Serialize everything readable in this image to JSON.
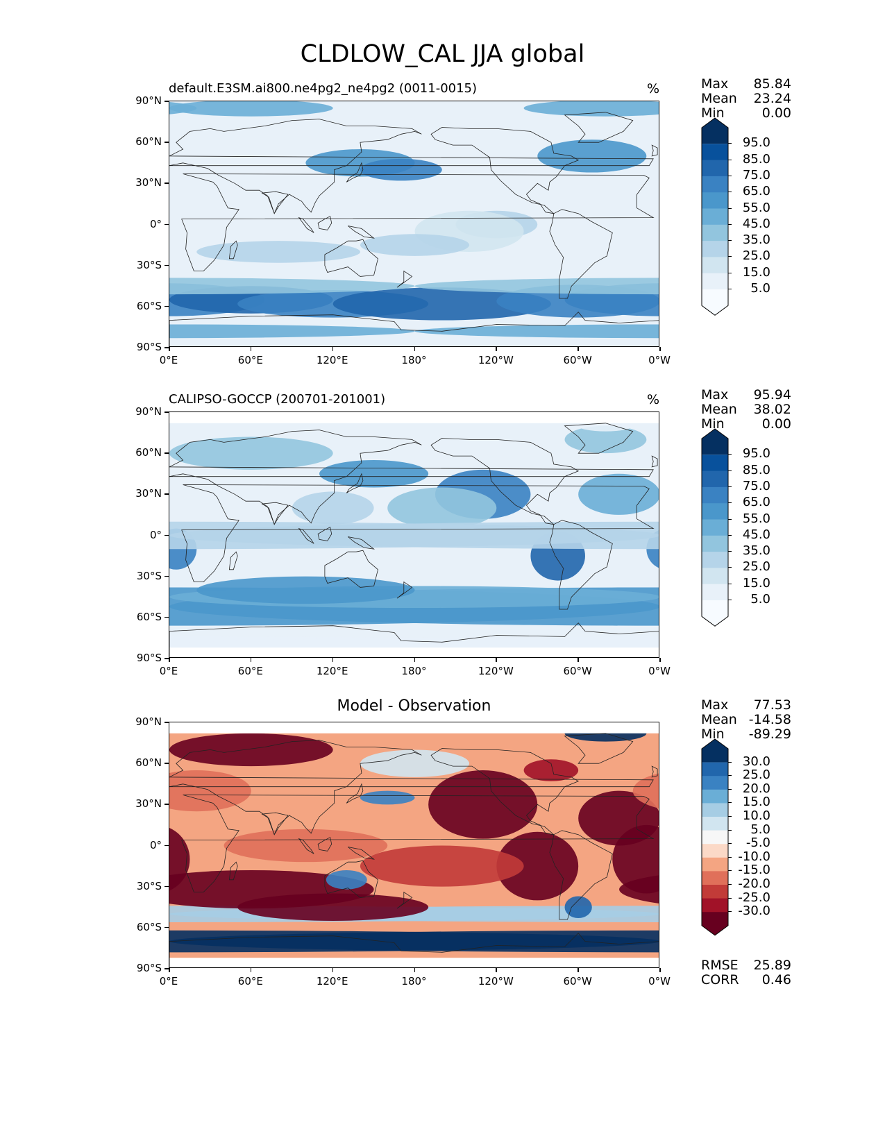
{
  "figure": {
    "title": "CLDLOW_CAL JJA global"
  },
  "axes": {
    "x_ticks": [
      "0°E",
      "60°E",
      "120°E",
      "180°",
      "120°W",
      "60°W",
      "0°W"
    ],
    "y_ticks": [
      "90°N",
      "60°N",
      "30°N",
      "0°",
      "30°S",
      "60°S",
      "90°S"
    ]
  },
  "panels": [
    {
      "title": "default.E3SM.ai800.ne4pg2_ne4pg2 (0011-0015)",
      "units": "%",
      "stats": [
        {
          "label": "Max",
          "value": "85.84"
        },
        {
          "label": "Mean",
          "value": "23.24"
        },
        {
          "label": "Min",
          "value": "0.00"
        }
      ],
      "colorbar": {
        "labels": [
          "95.0",
          "85.0",
          "75.0",
          "65.0",
          "55.0",
          "45.0",
          "35.0",
          "25.0",
          "15.0",
          "5.0"
        ],
        "colors": [
          "#053061",
          "#08519c",
          "#2166ac",
          "#3a82c2",
          "#4a97cb",
          "#6aaed6",
          "#92c5de",
          "#b5d4e9",
          "#d1e5f0",
          "#e8f1f9",
          "#f7fbff"
        ]
      }
    },
    {
      "title": "CALIPSO-GOCCP (200701-201001)",
      "units": "%",
      "stats": [
        {
          "label": "Max",
          "value": "95.94"
        },
        {
          "label": "Mean",
          "value": "38.02"
        },
        {
          "label": "Min",
          "value": "0.00"
        }
      ],
      "colorbar": {
        "labels": [
          "95.0",
          "85.0",
          "75.0",
          "65.0",
          "55.0",
          "45.0",
          "35.0",
          "25.0",
          "15.0",
          "5.0"
        ],
        "colors": [
          "#053061",
          "#08519c",
          "#2166ac",
          "#3a82c2",
          "#4a97cb",
          "#6aaed6",
          "#92c5de",
          "#b5d4e9",
          "#d1e5f0",
          "#e8f1f9",
          "#f7fbff"
        ]
      }
    },
    {
      "title": "Model - Observation",
      "units": "",
      "stats": [
        {
          "label": "Max",
          "value": "77.53"
        },
        {
          "label": "Mean",
          "value": "-14.58"
        },
        {
          "label": "Min",
          "value": "-89.29"
        }
      ],
      "colorbar": {
        "labels": [
          "30.0",
          "25.0",
          "20.0",
          "15.0",
          "10.0",
          "5.0",
          "-5.0",
          "-10.0",
          "-15.0",
          "-20.0",
          "-25.0",
          "-30.0"
        ],
        "colors": [
          "#053061",
          "#2166ac",
          "#3a82c2",
          "#6aaed6",
          "#a6cde4",
          "#d1e5f0",
          "#f7f7f7",
          "#fbd9c7",
          "#f4a582",
          "#e0705a",
          "#c23b38",
          "#a11228",
          "#67001f"
        ]
      },
      "extra_stats": [
        {
          "label": "RMSE",
          "value": "25.89"
        },
        {
          "label": "CORR",
          "value": "0.46"
        }
      ]
    }
  ],
  "chart_data": {
    "type": "heatmap",
    "title": "CLDLOW_CAL JJA global",
    "variable": "CLDLOW_CAL",
    "season": "JJA",
    "xlim": [
      0,
      360
    ],
    "ylim": [
      -90,
      90
    ],
    "panels": [
      "default.E3SM.ai800.ne4pg2_ne4pg2 (0011-0015)",
      "CALIPSO-GOCCP (200701-201001)",
      "Model - Observation"
    ]
  }
}
